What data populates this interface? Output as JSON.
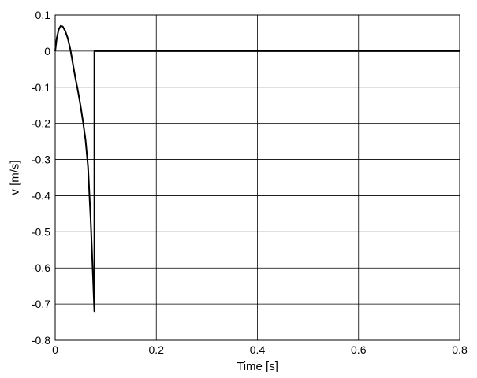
{
  "chart_data": {
    "type": "line",
    "title": "",
    "xlabel": "Time [s]",
    "ylabel": "v [m/s]",
    "xlim": [
      0,
      0.8
    ],
    "ylim": [
      -0.8,
      0.1
    ],
    "grid": true,
    "x_ticks": [
      0,
      0.2,
      0.4,
      0.6,
      0.8
    ],
    "x_tick_labels": [
      "0",
      "0.2",
      "0.4",
      "0.6",
      "0.8"
    ],
    "y_ticks": [
      0.1,
      0,
      -0.1,
      -0.2,
      -0.3,
      -0.4,
      -0.5,
      -0.6,
      -0.7,
      -0.8
    ],
    "y_tick_labels": [
      "0.1",
      "0",
      "-0.1",
      "-0.2",
      "-0.3",
      "-0.4",
      "-0.5",
      "-0.6",
      "-0.7",
      "-0.8"
    ],
    "line_color": "#000000",
    "series": [
      {
        "x": [
          0,
          0.003,
          0.007,
          0.011,
          0.015,
          0.02,
          0.025,
          0.03,
          0.035,
          0.04,
          0.045,
          0.05,
          0.055,
          0.06,
          0.065,
          0.07,
          0.075,
          0.0775,
          0.0775,
          0.08,
          0.2,
          0.4,
          0.6,
          0.8
        ],
        "y": [
          0,
          0.035,
          0.06,
          0.07,
          0.068,
          0.055,
          0.035,
          0.005,
          -0.035,
          -0.075,
          -0.11,
          -0.15,
          -0.195,
          -0.245,
          -0.32,
          -0.46,
          -0.63,
          -0.72,
          0,
          0,
          0,
          0,
          0,
          0
        ]
      }
    ]
  }
}
